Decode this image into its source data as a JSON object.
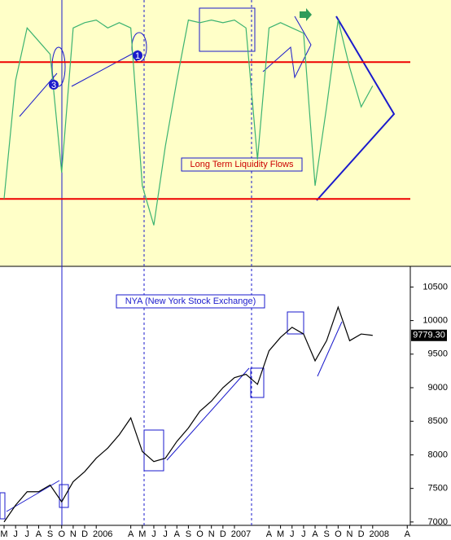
{
  "chart_data": [
    {
      "type": "line",
      "title": "Long Term Liquidity Flows",
      "categories": [
        "M",
        "J",
        "J",
        "A",
        "S",
        "O",
        "N",
        "D",
        "2006",
        null,
        null,
        "A",
        "M",
        "J",
        "J",
        "A",
        "S",
        "O",
        "N",
        "D",
        "2007",
        null,
        null,
        "A",
        "M",
        "J",
        "J",
        "A",
        "S",
        "O",
        "N",
        "D",
        "2008",
        null,
        null,
        "A"
      ],
      "series": [
        {
          "color": "#3cb371",
          "values": [
            25,
            70,
            90,
            85,
            80,
            35,
            90,
            92,
            93,
            90,
            92,
            90,
            30,
            15,
            45,
            70,
            93,
            92,
            93,
            92,
            93,
            90,
            40,
            90,
            92,
            90,
            88,
            30,
            60,
            93,
            75,
            60,
            68,
            null,
            null,
            null
          ]
        }
      ],
      "ylim": [
        0,
        100
      ],
      "reference_lines": [
        77,
        25
      ],
      "reference_color": "#ee0000",
      "annotations": [
        "3",
        "1"
      ]
    },
    {
      "type": "line",
      "title": "NYA (New York Stock Exchange)",
      "categories": [
        "M",
        "J",
        "J",
        "A",
        "S",
        "O",
        "N",
        "D",
        "2006",
        null,
        null,
        "A",
        "M",
        "J",
        "J",
        "A",
        "S",
        "O",
        "N",
        "D",
        "2007",
        null,
        null,
        "A",
        "M",
        "J",
        "J",
        "A",
        "S",
        "O",
        "N",
        "D",
        "2008",
        null,
        null,
        "A"
      ],
      "series": [
        {
          "color": "#000000",
          "values": [
            7000,
            7250,
            7450,
            7450,
            7550,
            7300,
            7600,
            7750,
            7950,
            8100,
            8300,
            8550,
            8050,
            7900,
            7950,
            8200,
            8400,
            8650,
            8800,
            9000,
            9150,
            9200,
            9050,
            9550,
            9750,
            9900,
            9800,
            9400,
            9700,
            10200,
            9700,
            9800,
            9779.3,
            null,
            null,
            null
          ],
          "last_label": "9779.30"
        }
      ],
      "ylim": [
        6950,
        10650
      ],
      "yticks": [
        7000,
        7500,
        8000,
        8500,
        9000,
        9500,
        10000,
        10500
      ]
    }
  ]
}
